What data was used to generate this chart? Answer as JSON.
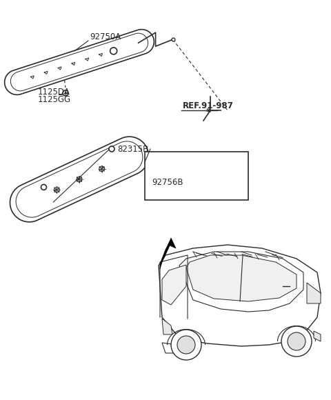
{
  "bg_color": "#ffffff",
  "line_color": "#2a2a2a",
  "label_92750A": "92750A",
  "label_1125DA": "1125DA",
  "label_1125GG": "1125GG",
  "label_REF": "REF.91-987",
  "label_82315B": "82315B",
  "label_92756B": "92756B",
  "title_fontsize": 9,
  "label_fontsize": 8.5
}
